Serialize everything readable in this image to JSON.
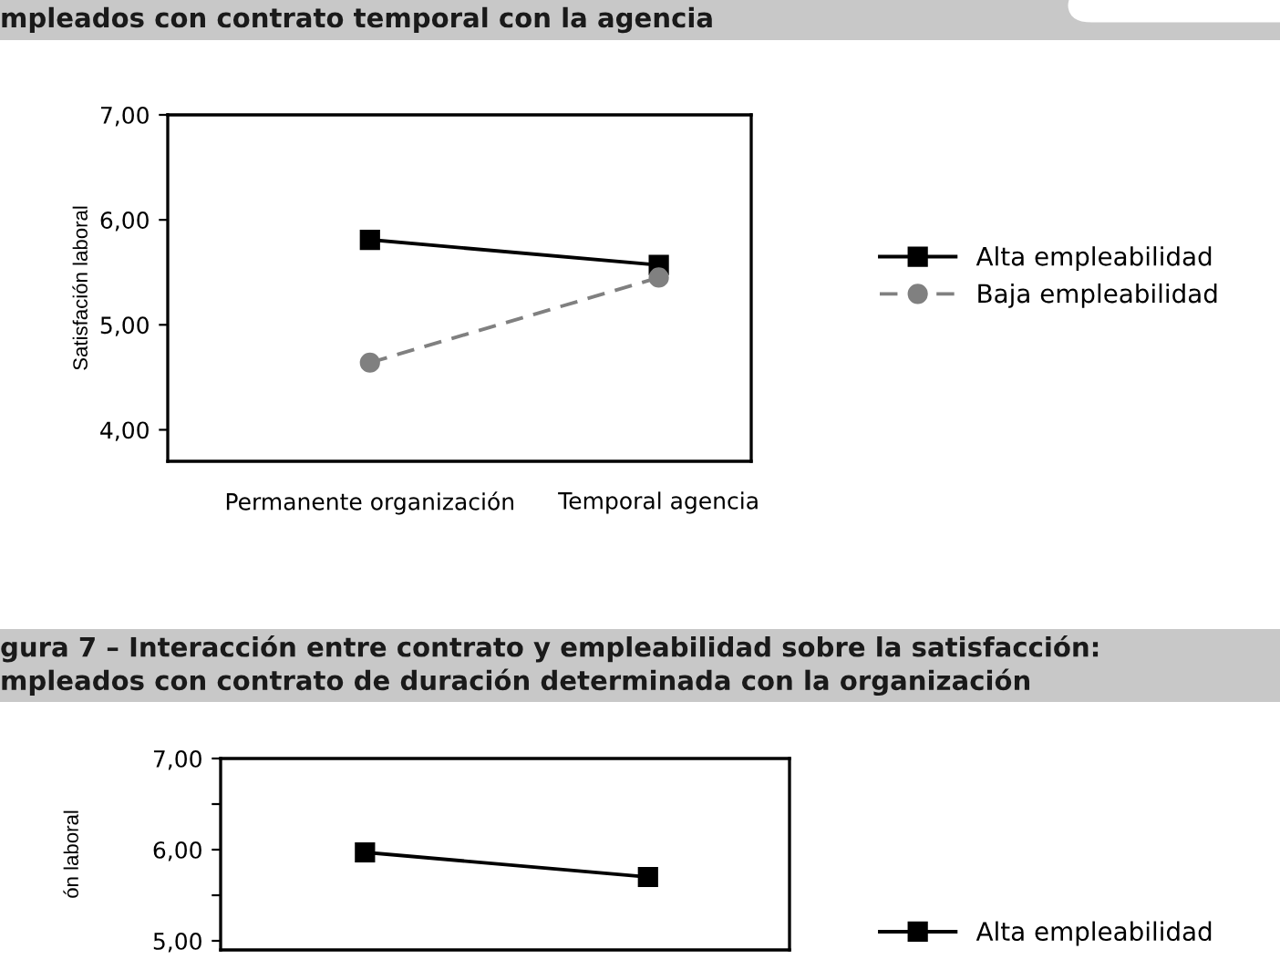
{
  "chart_data": [
    {
      "type": "line",
      "title": "mpleados con contrato temporal con la agencia",
      "ylabel": "Satisfación laboral",
      "categories": [
        "Permanente organización",
        "Temporal agencia"
      ],
      "series": [
        {
          "name": "Alta empleabilidad",
          "color": "#000000",
          "values": [
            5.81,
            5.57
          ],
          "marker": "square",
          "line_style": "solid"
        },
        {
          "name": "Baja empleabilidad",
          "color": "#808080",
          "values": [
            4.64,
            5.45
          ],
          "marker": "circle",
          "line_style": "dashed"
        }
      ],
      "ylim": [
        3.7,
        7
      ],
      "yticks": [
        {
          "value": 4,
          "label": "4,00"
        },
        {
          "value": 5,
          "label": "5,00"
        },
        {
          "value": 6,
          "label": "6,00"
        },
        {
          "value": 7,
          "label": "7,00"
        }
      ],
      "grid": false,
      "legend": "right"
    },
    {
      "type": "line",
      "title": "gura 7 – Interacción entre contrato y empleabilidad sobre la satisfacción:\nmpleados con contrato de duración determinada con la organización",
      "ylabel": "ón laboral",
      "categories": [
        null,
        null
      ],
      "series": [
        {
          "name": "Alta empleabilidad",
          "color": "#000000",
          "values": [
            5.97,
            5.7
          ],
          "marker": "square",
          "line_style": "solid"
        }
      ],
      "ylim": [
        4.9,
        7
      ],
      "yticks": [
        {
          "value": 5,
          "label": "5,00"
        },
        {
          "value": 5.5,
          "label": null
        },
        {
          "value": 6,
          "label": "6,00"
        },
        {
          "value": 6.5,
          "label": null
        },
        {
          "value": 7,
          "label": "7,00"
        }
      ],
      "grid": false,
      "legend": "right"
    }
  ]
}
